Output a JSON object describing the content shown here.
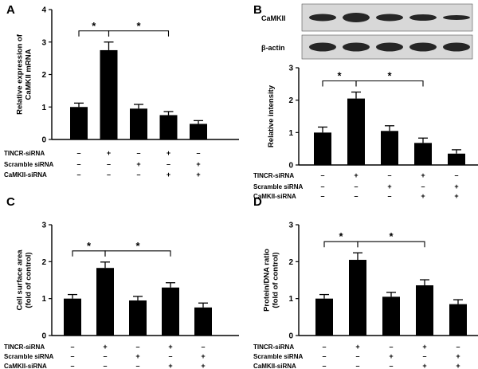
{
  "chart_data": [
    {
      "panel": "A",
      "type": "bar",
      "ylabel_lines": [
        "Relative expression of",
        "CaMKII  mRNA"
      ],
      "ylim": [
        0,
        4
      ],
      "yticks": [
        0,
        1,
        2,
        3,
        4
      ],
      "values": [
        1.0,
        2.75,
        0.95,
        0.75,
        0.48
      ],
      "errors": [
        0.12,
        0.25,
        0.13,
        0.11,
        0.1
      ],
      "row_labels": [
        "TINCR-siRNA",
        "Scramble siRNA",
        "CaMKII-siRNA"
      ],
      "signs": [
        [
          "–",
          "+",
          "–",
          "+",
          "–"
        ],
        [
          "–",
          "–",
          "+",
          "–",
          "+"
        ],
        [
          "–",
          "–",
          "–",
          "+",
          "+"
        ]
      ],
      "significance": [
        {
          "from": 0,
          "to": 1,
          "label": "*"
        },
        {
          "from": 1,
          "to": 3,
          "label": "*"
        }
      ]
    },
    {
      "panel": "B",
      "type": "bar",
      "blot_labels": [
        "CaMKII",
        "β-actin"
      ],
      "ylabel_lines": [
        "Relative intensity"
      ],
      "ylim": [
        0,
        3
      ],
      "yticks": [
        0,
        1,
        2,
        3
      ],
      "values": [
        1.0,
        2.05,
        1.05,
        0.68,
        0.35
      ],
      "errors": [
        0.17,
        0.2,
        0.16,
        0.15,
        0.12
      ],
      "row_labels": [
        "TINCR-siRNA",
        "Scramble siRNA",
        "CaMKII-siRNA"
      ],
      "signs": [
        [
          "–",
          "+",
          "–",
          "+",
          "–"
        ],
        [
          "–",
          "–",
          "+",
          "–",
          "+"
        ],
        [
          "–",
          "–",
          "–",
          "+",
          "+"
        ]
      ],
      "significance": [
        {
          "from": 0,
          "to": 1,
          "label": "*"
        },
        {
          "from": 1,
          "to": 3,
          "label": "*"
        }
      ]
    },
    {
      "panel": "C",
      "type": "bar",
      "ylabel_lines": [
        "Cell surface area",
        "(fold of control)"
      ],
      "ylim": [
        0,
        3
      ],
      "yticks": [
        0,
        1,
        2,
        3
      ],
      "values": [
        1.0,
        1.83,
        0.95,
        1.3,
        0.76
      ],
      "errors": [
        0.11,
        0.16,
        0.11,
        0.13,
        0.12
      ],
      "row_labels": [
        "TINCR-siRNA",
        "Scramble siRNA",
        "CaMKII-siRNA"
      ],
      "signs": [
        [
          "–",
          "+",
          "–",
          "+",
          "–"
        ],
        [
          "–",
          "–",
          "+",
          "–",
          "+"
        ],
        [
          "–",
          "–",
          "–",
          "+",
          "+"
        ]
      ],
      "significance": [
        {
          "from": 0,
          "to": 1,
          "label": "*"
        },
        {
          "from": 1,
          "to": 3,
          "label": "*"
        }
      ]
    },
    {
      "panel": "D",
      "type": "bar",
      "ylabel_lines": [
        "Protein/DNA ratio",
        "(fold of control)"
      ],
      "ylim": [
        0,
        3
      ],
      "yticks": [
        0,
        1,
        2,
        3
      ],
      "values": [
        1.0,
        2.05,
        1.05,
        1.36,
        0.85
      ],
      "errors": [
        0.11,
        0.19,
        0.12,
        0.15,
        0.12
      ],
      "row_labels": [
        "TINCR-siRNA",
        "Scramble siRNA",
        "CaMKII-siRNA"
      ],
      "signs": [
        [
          "–",
          "+",
          "–",
          "+",
          "–"
        ],
        [
          "–",
          "–",
          "+",
          "–",
          "+"
        ],
        [
          "–",
          "–",
          "–",
          "+",
          "+"
        ]
      ],
      "significance": [
        {
          "from": 0,
          "to": 1,
          "label": "*"
        },
        {
          "from": 1,
          "to": 3,
          "label": "*"
        }
      ]
    }
  ],
  "colors": {
    "bar": "#000000",
    "axis": "#000000",
    "blot_bg": "#d8d8d8",
    "band": "#262626"
  }
}
